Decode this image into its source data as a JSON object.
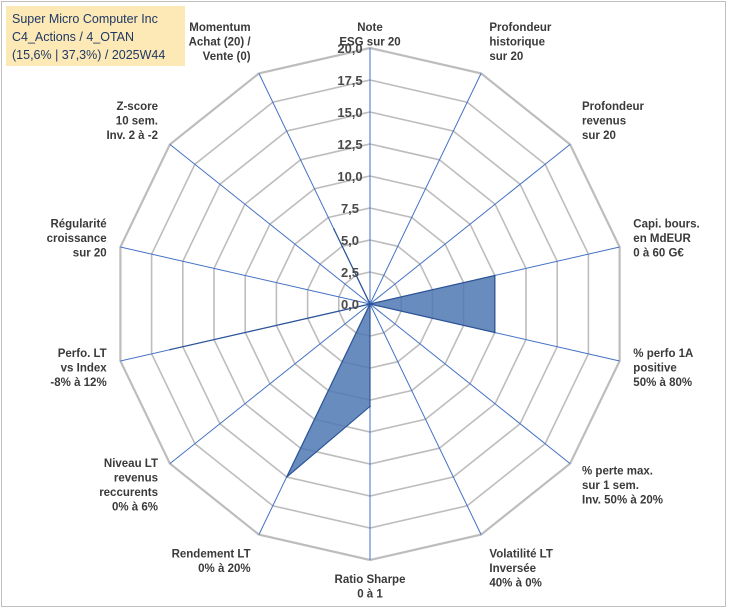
{
  "header": {
    "company": "Super Micro Computer Inc",
    "category": "C4_Actions / 4_OTAN",
    "stats": "(15,6% | 37,3%) / 2025W44"
  },
  "chart_data": {
    "type": "radar",
    "title": "Super Micro Computer Inc",
    "rlim": [
      0,
      20
    ],
    "ticks": [
      "0,0",
      "2,5",
      "5,0",
      "7,5",
      "10,0",
      "12,5",
      "15,0",
      "17,5",
      "20,0"
    ],
    "axes": [
      [
        "Note",
        "ESG sur 20"
      ],
      [
        "Profondeur",
        "historique",
        "sur 20"
      ],
      [
        "Profondeur",
        "revenus",
        "sur 20"
      ],
      [
        "Capi. bours.",
        "en MdEUR",
        "0 à 60 G€"
      ],
      [
        "% perfo 1A",
        "positive",
        "50% à 80%"
      ],
      [
        "% perte max.",
        "sur 1 sem.",
        "Inv. 50% à 20%"
      ],
      [
        "Volatilité LT",
        "Inversée",
        "40% à 0%"
      ],
      [
        "Ratio Sharpe",
        "0 à 1"
      ],
      [
        "Rendement LT",
        "0% à 20%"
      ],
      [
        "Niveau LT",
        "revenus",
        "reccurents",
        "0% à 6%"
      ],
      [
        "Perfo. LT",
        "vs Index",
        "-8% à 12%"
      ],
      [
        "Régularité",
        "croissance",
        "sur 20"
      ],
      [
        "Z-score",
        "10 sem.",
        "Inv. 2 à -2"
      ],
      [
        "Momentum",
        "Achat (20) /",
        "Vente (0)"
      ]
    ],
    "series": [
      {
        "name": "Super Micro Computer Inc",
        "values": [
          0,
          0,
          0,
          10,
          10,
          0,
          0,
          8,
          15,
          0,
          16,
          0,
          0,
          6.5
        ]
      }
    ],
    "colors": {
      "fill": "#4f78b3",
      "stroke": "#2e5597",
      "grid": "#bdbdbd",
      "spoke": "#4472c4"
    }
  }
}
